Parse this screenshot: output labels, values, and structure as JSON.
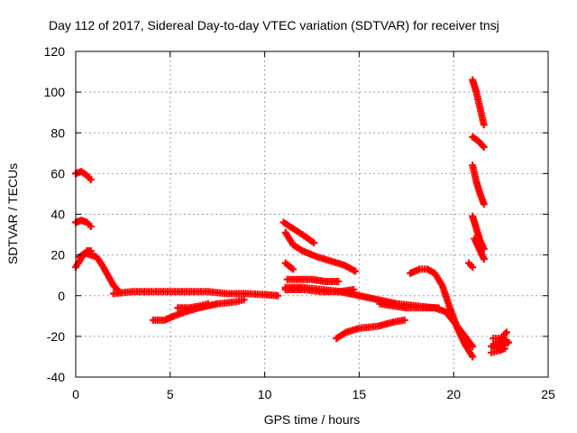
{
  "chart_data": {
    "type": "scatter",
    "title": "Day 112 of 2017, Sidereal Day-to-day VTEC variation (SDTVAR) for receiver tnsj",
    "xlabel": "GPS time / hours",
    "ylabel": "SDTVAR / TECUs",
    "xlim": [
      0,
      25
    ],
    "ylim": [
      -40,
      120
    ],
    "xticks": [
      "0",
      "5",
      "10",
      "15",
      "20",
      "25"
    ],
    "yticks": [
      "-40",
      "-20",
      "0",
      "20",
      "40",
      "60",
      "80",
      "100",
      "120"
    ],
    "grid": true,
    "marker_color": "#ff0000",
    "series": [
      {
        "points": [
          [
            0.0,
            60
          ],
          [
            0.3,
            61
          ],
          [
            0.6,
            59
          ],
          [
            0.8,
            57
          ]
        ]
      },
      {
        "points": [
          [
            0.0,
            36
          ],
          [
            0.3,
            37
          ],
          [
            0.6,
            36
          ],
          [
            0.8,
            34
          ]
        ]
      },
      {
        "points": [
          [
            0.0,
            14
          ],
          [
            0.2,
            17
          ],
          [
            0.4,
            20
          ],
          [
            0.6,
            22
          ],
          [
            0.8,
            22
          ]
        ]
      },
      {
        "points": [
          [
            0.2,
            19
          ],
          [
            0.5,
            21
          ],
          [
            0.8,
            20
          ],
          [
            1.1,
            19
          ],
          [
            1.4,
            15
          ],
          [
            1.7,
            10
          ],
          [
            2.0,
            5
          ],
          [
            2.3,
            2
          ]
        ]
      },
      {
        "points": [
          [
            2.0,
            1
          ],
          [
            3.0,
            2
          ],
          [
            4.0,
            2
          ],
          [
            5.0,
            2
          ],
          [
            6.0,
            2
          ],
          [
            7.0,
            2
          ],
          [
            8.0,
            1
          ],
          [
            9.0,
            1
          ],
          [
            10.0,
            0.5
          ],
          [
            10.7,
            0
          ]
        ]
      },
      {
        "points": [
          [
            4.1,
            -12
          ],
          [
            4.7,
            -12
          ],
          [
            5.2,
            -10
          ],
          [
            5.8,
            -8
          ],
          [
            6.5,
            -6
          ],
          [
            7.5,
            -4
          ],
          [
            8.5,
            -3
          ],
          [
            8.9,
            -2
          ]
        ]
      },
      {
        "points": [
          [
            5.4,
            -6
          ],
          [
            6.0,
            -6
          ],
          [
            6.6,
            -5
          ],
          [
            7.0,
            -4
          ]
        ]
      },
      {
        "points": [
          [
            11.0,
            36
          ],
          [
            11.5,
            33
          ],
          [
            12.0,
            30
          ],
          [
            12.6,
            26
          ]
        ]
      },
      {
        "points": [
          [
            11.1,
            31
          ],
          [
            11.5,
            25
          ],
          [
            12.0,
            22
          ],
          [
            12.8,
            19
          ],
          [
            13.5,
            17
          ],
          [
            14.2,
            15
          ],
          [
            14.8,
            12
          ]
        ]
      },
      {
        "points": [
          [
            11.1,
            16
          ],
          [
            11.5,
            13
          ]
        ]
      },
      {
        "points": [
          [
            11.2,
            8
          ],
          [
            11.8,
            8
          ],
          [
            12.5,
            8
          ],
          [
            13.2,
            7
          ],
          [
            13.9,
            7
          ]
        ]
      },
      {
        "points": [
          [
            11.1,
            3
          ],
          [
            12.0,
            3
          ],
          [
            13.0,
            2
          ],
          [
            14.0,
            2
          ],
          [
            14.7,
            3
          ]
        ]
      },
      {
        "points": [
          [
            11.1,
            4
          ],
          [
            12.0,
            4
          ],
          [
            13.0,
            3
          ],
          [
            14.0,
            2
          ]
        ]
      },
      {
        "points": [
          [
            14.0,
            2
          ],
          [
            15.0,
            0
          ],
          [
            16.0,
            -2
          ],
          [
            17.0,
            -4
          ],
          [
            18.0,
            -5
          ],
          [
            19.0,
            -6
          ],
          [
            19.6,
            -8
          ],
          [
            20.1,
            -14
          ],
          [
            20.6,
            -20
          ],
          [
            21.0,
            -25
          ]
        ]
      },
      {
        "points": [
          [
            16.1,
            -4
          ],
          [
            16.8,
            -5
          ],
          [
            17.5,
            -6
          ],
          [
            18.5,
            -6
          ],
          [
            19.2,
            -6
          ]
        ]
      },
      {
        "points": [
          [
            13.8,
            -21
          ],
          [
            14.3,
            -18
          ],
          [
            15.0,
            -16
          ],
          [
            16.0,
            -15
          ],
          [
            16.8,
            -13
          ],
          [
            17.4,
            -12
          ]
        ]
      },
      {
        "points": [
          [
            17.7,
            11
          ],
          [
            18.2,
            13
          ],
          [
            18.6,
            13
          ],
          [
            19.0,
            11
          ],
          [
            19.4,
            5
          ],
          [
            19.8,
            -6
          ],
          [
            20.2,
            -16
          ],
          [
            20.6,
            -24
          ],
          [
            21.0,
            -30
          ]
        ]
      },
      {
        "points": [
          [
            21.0,
            106
          ],
          [
            21.2,
            100
          ],
          [
            21.4,
            92
          ],
          [
            21.6,
            84
          ]
        ]
      },
      {
        "points": [
          [
            21.0,
            78
          ],
          [
            21.3,
            76
          ],
          [
            21.6,
            73
          ]
        ]
      },
      {
        "points": [
          [
            21.0,
            64
          ],
          [
            21.2,
            56
          ],
          [
            21.4,
            50
          ],
          [
            21.6,
            45
          ]
        ]
      },
      {
        "points": [
          [
            21.0,
            39
          ],
          [
            21.2,
            33
          ],
          [
            21.4,
            27
          ],
          [
            21.6,
            23
          ]
        ]
      },
      {
        "points": [
          [
            21.1,
            28
          ],
          [
            21.4,
            22
          ],
          [
            21.6,
            18
          ]
        ]
      },
      {
        "points": [
          [
            20.8,
            16
          ],
          [
            21.0,
            14
          ]
        ]
      },
      {
        "points": [
          [
            22.0,
            -25
          ],
          [
            22.2,
            -24
          ],
          [
            22.5,
            -23
          ],
          [
            22.8,
            -22
          ]
        ]
      },
      {
        "points": [
          [
            22.0,
            -28
          ],
          [
            22.4,
            -27
          ],
          [
            22.7,
            -26
          ]
        ]
      },
      {
        "points": [
          [
            22.1,
            -21
          ],
          [
            22.5,
            -21
          ],
          [
            22.8,
            -18
          ]
        ]
      },
      {
        "points": [
          [
            22.3,
            -26
          ],
          [
            22.6,
            -24
          ],
          [
            22.9,
            -23
          ]
        ]
      }
    ]
  }
}
